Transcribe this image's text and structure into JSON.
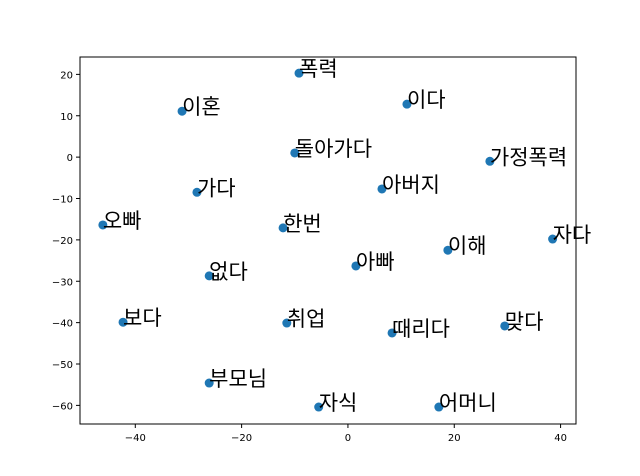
{
  "chart_data": {
    "type": "scatter",
    "color": "#1f77b4",
    "labels": [
      "폭력",
      "이혼",
      "이다",
      "돌아가다",
      "가정폭력",
      "가다",
      "아버지",
      "오빠",
      "한번",
      "자다",
      "이해",
      "아빠",
      "없다",
      "보다",
      "취업",
      "맞다",
      "때리다",
      "부모님",
      "자식",
      "어머니"
    ],
    "x": [
      -9.2,
      -31.2,
      11.1,
      -10.0,
      26.7,
      -28.4,
      6.4,
      -46.1,
      -12.2,
      38.5,
      18.8,
      1.5,
      -26.1,
      -42.3,
      -11.5,
      29.5,
      8.3,
      -26.1,
      -5.5,
      17.1
    ],
    "y": [
      20.3,
      11.1,
      12.8,
      1.0,
      -1.0,
      -8.5,
      -7.7,
      -16.4,
      -17.1,
      -19.8,
      -22.5,
      -26.3,
      -28.7,
      -39.9,
      -40.1,
      -40.8,
      -42.5,
      -54.6,
      -60.4,
      -60.4
    ],
    "xlim": [
      -50.4,
      42.9
    ],
    "ylim": [
      -64.5,
      24.2
    ],
    "xticks": [
      {
        "value": -40,
        "label": "−40"
      },
      {
        "value": -20,
        "label": "−20"
      },
      0,
      20,
      40
    ],
    "yticks": [
      20,
      10,
      0,
      {
        "value": -10,
        "label": "−10"
      },
      {
        "value": -20,
        "label": "−20"
      },
      {
        "value": -30,
        "label": "−30"
      },
      {
        "value": -40,
        "label": "−40"
      },
      {
        "value": -50,
        "label": "−50"
      },
      {
        "value": -60,
        "label": "−60"
      }
    ]
  }
}
